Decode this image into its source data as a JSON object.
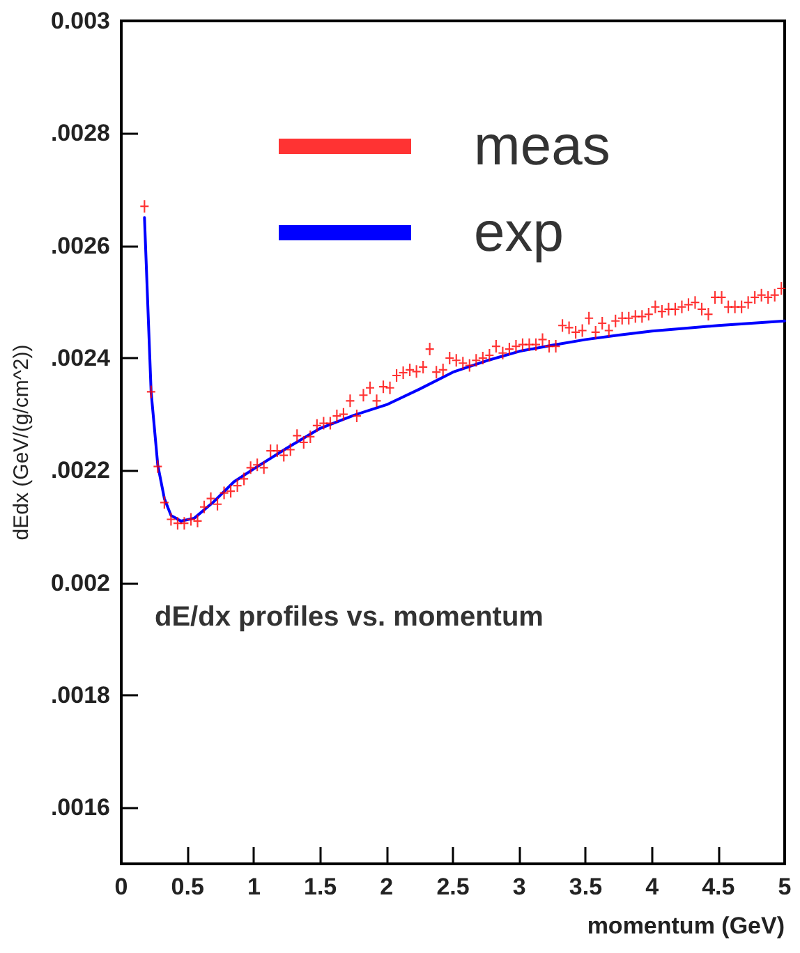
{
  "chart_data": {
    "type": "scatter",
    "title": "dE/dx profiles vs. momentum",
    "xlabel": "momentum (GeV)",
    "ylabel": "dEdx (GeV/(g/cm^2))",
    "xlim": [
      0,
      5
    ],
    "xticks": [
      0,
      0.5,
      1,
      1.5,
      2,
      2.5,
      3,
      3.5,
      4,
      4.5,
      5
    ],
    "ylim": [
      0.0015,
      0.003
    ],
    "yticks": [
      {
        "value": 0.0016,
        "label": ".0016"
      },
      {
        "value": 0.0018,
        "label": ".0018"
      },
      {
        "value": 0.002,
        "label": "0.002"
      },
      {
        "value": 0.0022,
        "label": ".0022"
      },
      {
        "value": 0.0024,
        "label": ".0024"
      },
      {
        "value": 0.0026,
        "label": ".0026"
      },
      {
        "value": 0.0028,
        "label": ".0028"
      },
      {
        "value": 0.003,
        "label": "0.003"
      }
    ],
    "grid": false,
    "legend": "top",
    "marker": "cross",
    "series": [
      {
        "name": "meas",
        "color": "#ff0000",
        "x": [
          0.175,
          0.225,
          0.275,
          0.325,
          0.375,
          0.425,
          0.475,
          0.525,
          0.575,
          0.625,
          0.675,
          0.725,
          0.775,
          0.825,
          0.875,
          0.925,
          0.975,
          1.025,
          1.075,
          1.125,
          1.175,
          1.225,
          1.275,
          1.325,
          1.375,
          1.425,
          1.475,
          1.525,
          1.575,
          1.625,
          1.675,
          1.725,
          1.775,
          1.825,
          1.875,
          1.925,
          1.975,
          2.025,
          2.075,
          2.125,
          2.175,
          2.225,
          2.275,
          2.325,
          2.375,
          2.425,
          2.475,
          2.525,
          2.575,
          2.625,
          2.675,
          2.725,
          2.775,
          2.825,
          2.875,
          2.925,
          2.975,
          3.025,
          3.075,
          3.125,
          3.175,
          3.225,
          3.275,
          3.325,
          3.375,
          3.425,
          3.475,
          3.525,
          3.575,
          3.625,
          3.675,
          3.725,
          3.775,
          3.825,
          3.875,
          3.925,
          3.975,
          4.025,
          4.075,
          4.125,
          4.175,
          4.225,
          4.275,
          4.325,
          4.375,
          4.425,
          4.475,
          4.525,
          4.575,
          4.625,
          4.675,
          4.725,
          4.775,
          4.825,
          4.875,
          4.925,
          4.975
        ],
        "values": [
          0.00267,
          0.00234,
          0.002207,
          0.002143,
          0.002113,
          0.002106,
          0.002106,
          0.002113,
          0.00211,
          0.002135,
          0.00215,
          0.00214,
          0.00216,
          0.002163,
          0.002173,
          0.002185,
          0.002205,
          0.00221,
          0.002205,
          0.002235,
          0.002235,
          0.002227,
          0.002237,
          0.002262,
          0.00225,
          0.00226,
          0.00228,
          0.002284,
          0.002284,
          0.002297,
          0.0023,
          0.002324,
          0.002297,
          0.002334,
          0.002347,
          0.002324,
          0.002349,
          0.002347,
          0.002369,
          0.002374,
          0.002379,
          0.002376,
          0.002384,
          0.002416,
          0.002375,
          0.002379,
          0.0024,
          0.002396,
          0.002391,
          0.002387,
          0.002396,
          0.0024,
          0.002405,
          0.002421,
          0.002409,
          0.002416,
          0.002421,
          0.002424,
          0.002424,
          0.002424,
          0.002433,
          0.002421,
          0.002421,
          0.002458,
          0.002454,
          0.002446,
          0.002449,
          0.002471,
          0.002446,
          0.002462,
          0.002449,
          0.002466,
          0.002471,
          0.002471,
          0.002474,
          0.002474,
          0.002478,
          0.002491,
          0.002483,
          0.002487,
          0.002487,
          0.002491,
          0.002495,
          0.002499,
          0.002487,
          0.002478,
          0.002508,
          0.002508,
          0.002491,
          0.002491,
          0.002491,
          0.002499,
          0.002508,
          0.002512,
          0.002508,
          0.002512,
          0.002524
        ]
      },
      {
        "name": "exp",
        "color": "#0000ff",
        "type": "line",
        "marker": "none",
        "x": [
          0.175,
          0.225,
          0.275,
          0.325,
          0.375,
          0.45,
          0.55,
          0.7,
          0.85,
          1.0,
          1.25,
          1.5,
          1.75,
          2.0,
          2.25,
          2.5,
          2.75,
          3.0,
          3.25,
          3.5,
          3.75,
          4.0,
          4.25,
          4.5,
          4.75,
          5.0
        ],
        "values": [
          0.00265,
          0.00234,
          0.00221,
          0.00215,
          0.00212,
          0.00211,
          0.002115,
          0.002145,
          0.00218,
          0.002203,
          0.00224,
          0.002275,
          0.002298,
          0.002317,
          0.002345,
          0.002375,
          0.002395,
          0.002412,
          0.002423,
          0.002433,
          0.002441,
          0.002448,
          0.002453,
          0.002458,
          0.002462,
          0.002466
        ]
      }
    ]
  }
}
